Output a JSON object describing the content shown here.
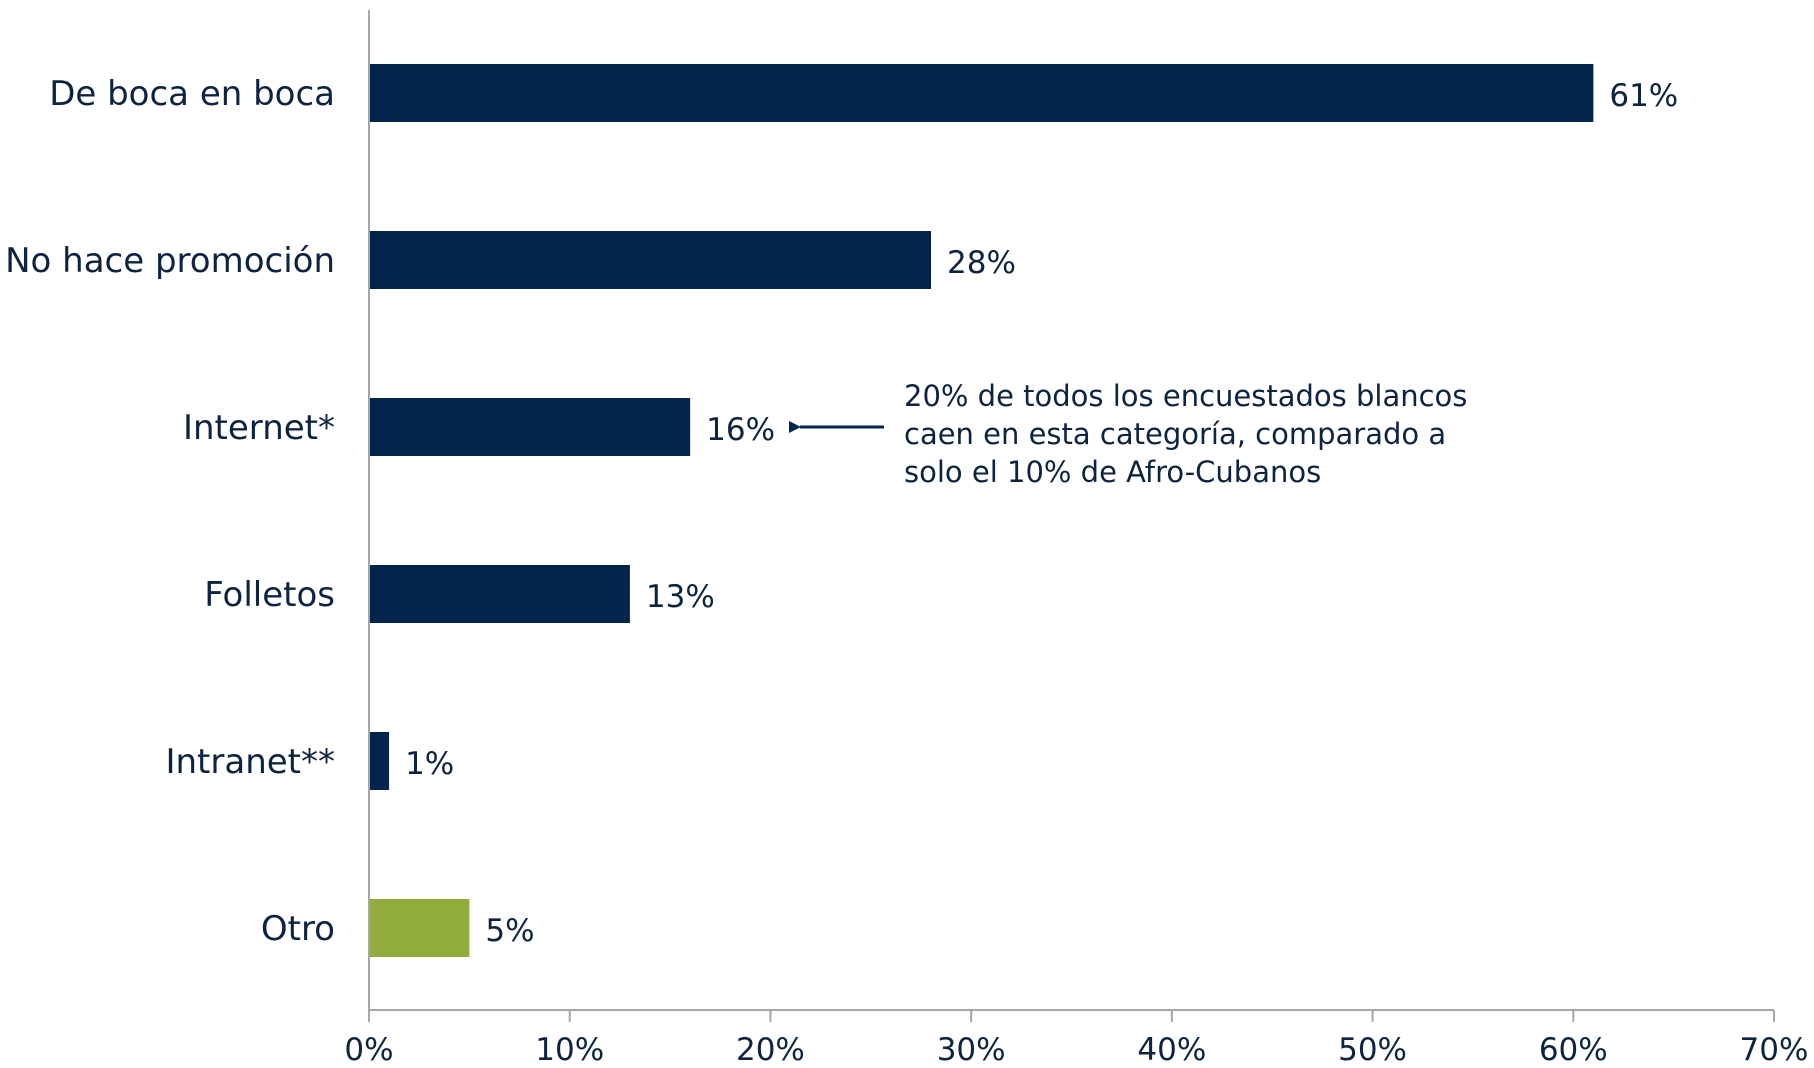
{
  "chart_data": {
    "type": "bar",
    "orientation": "horizontal",
    "categories": [
      "De boca en boca",
      "No hace promoción",
      "Internet*",
      "Folletos",
      "Intranet**",
      "Otro"
    ],
    "values": [
      61,
      28,
      16,
      13,
      1,
      5
    ],
    "value_labels": [
      "61%",
      "28%",
      "16%",
      "13%",
      "1%",
      "5%"
    ],
    "bar_colors": [
      "#03254c",
      "#03254c",
      "#03254c",
      "#03254c",
      "#03254c",
      "#93ad3c"
    ],
    "xlim": [
      0,
      70
    ],
    "xticks": [
      0,
      10,
      20,
      30,
      40,
      50,
      60,
      70
    ],
    "xtick_labels": [
      "0%",
      "10%",
      "20%",
      "30%",
      "40%",
      "50%",
      "60%",
      "70%"
    ],
    "grid": false,
    "annotation": {
      "target_category": "Internet*",
      "lines": [
        "20% de todos los encuestados blancos",
        "caen en esta categoría, comparado a",
        "solo el 10% de Afro-Cubanos"
      ]
    }
  }
}
